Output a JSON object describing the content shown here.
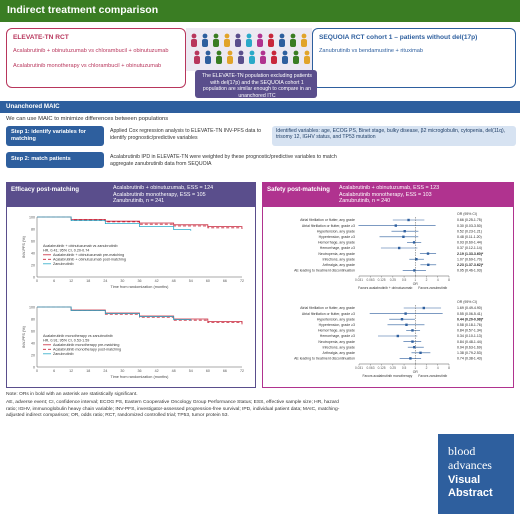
{
  "header": {
    "title": "Indirect treatment comparison"
  },
  "trials": {
    "left": {
      "title": "ELEVATE-TN RCT",
      "lines": [
        "Acalabrutinib + obinutuzumab vs chlorambucil + obinutuzumab",
        "Acalabrutinib monotherapy vs chlorambucil + obinutuzumab"
      ]
    },
    "right": {
      "title": "SEQUOIA RCT cohort 1 – patients without del(17p)",
      "lines": [
        "Zanubrutinib vs bendamustine + rituximab"
      ]
    },
    "callout": "The ELEVATE-TN population excluding patients with del(17p) and the SEQUOIA cohort 1 population are similar enough to compare in an unanchored ITC"
  },
  "maic": {
    "band_title": "Unanchored MAIC",
    "intro": "We can use MAIC to minimize differences between populations",
    "step1": {
      "label": "Step 1: identify variables for matching",
      "desc": "Applied Cox regression analysis to ELEVATE-TN INV-PFS data to identify prognostic/predictive variables",
      "identified": "Identified variables: age, ECOG PS, Binet stage, bulky disease, β2 microglobulin, cytopenia, del(11q), trisomy 12, IGHV status, and TP53 mutation"
    },
    "step2": {
      "label": "Step 2: match patients",
      "desc": "Acalabrutinib IPD in ELEVATE-TN were weighted by these prognostic/predictive variables to match aggregate zanubrutinib data from SEQUOIA"
    }
  },
  "efficacy": {
    "title": "Efficacy post-matching",
    "legend": [
      "Acalabrutinib + obinutuzumab, ESS = 124",
      "Acalabrutinib monotherapy, ESS = 105",
      "Zanubrutinib, n = 241"
    ],
    "ylabel": "INV-PFS (%)",
    "xlabel": "Time from randomization (months)",
    "plots": [
      {
        "legend_lines": [
          "Acalabrutinib + obinutuzumab vs zanubrutinib",
          "HR, 0.41; 95% CI, 0.20-0.74",
          "Acalabrutinib + obinutuzumab pre-matching",
          "Acalabrutinib + obinutuzumab post-matching",
          "Zanubrutinib"
        ]
      },
      {
        "legend_lines": [
          "Acalabrutinib monotherapy vs zanubrutinib",
          "HR, 0.91; 95% CI, 0.53-1.59",
          "Acalabrutinib monotherapy pre-matching",
          "Acalabrutinib monotherapy post-matching",
          "Zanubrutinib"
        ]
      }
    ]
  },
  "safety": {
    "title": "Safety post-matching",
    "legend": [
      "Acalabrutinib + obinutuzumab, ESS = 123",
      "Acalabrutinib monotherapy, ESS = 103",
      "Zanubrutinib, n = 240"
    ],
    "col_header": "OR (95% CI)",
    "axis_label": "OR",
    "favors_left_1": "Favors acalabrutinib + obinutuzumab",
    "favors_left_2": "Favors acalabrutinib monotherapy",
    "favors_right": "Favors zanubrutinib",
    "top_rows": [
      {
        "label": "Atrial fibrillation or flutter, any grade",
        "or": "0.66 (0.25-1.75)"
      },
      {
        "label": "Atrial fibrillation or flutter, grade ≥3",
        "or": "0.30 (0.03-3.50)"
      },
      {
        "label": "Hypertension, any grade",
        "or": "0.52 (0.23-1.21)"
      },
      {
        "label": "Hypertension, grade ≥3",
        "or": "0.48 (0.11-1.20)"
      },
      {
        "label": "Hemorrhage, any grade",
        "or": "0.93 (0.60-1.44)"
      },
      {
        "label": "Hemorrhage, grade ≥3",
        "or": "0.37 (0.12-1.14)"
      },
      {
        "label": "Neutropenia, any grade",
        "or": "2.19 (1.33-3.60)*"
      },
      {
        "label": "Infections, any grade",
        "or": "1.07 (0.69-1.70)"
      },
      {
        "label": "Arthralgia, any grade",
        "or": "2.23 (1.37-3.62)*"
      },
      {
        "label": "AE leading to treatment discontinuation",
        "or": "0.95 (0.46-1.93)"
      }
    ],
    "bottom_rows": [
      {
        "label": "Atrial fibrillation or flutter, any grade",
        "or": "1.69 (0.49-4.90)"
      },
      {
        "label": "Atrial fibrillation or flutter, grade ≥3",
        "or": "0.55 (0.06-5.41)"
      },
      {
        "label": "Hypertension, any grade",
        "or": "0.44 (0.20-0.98)*"
      },
      {
        "label": "Hypertension, grade ≥3",
        "or": "0.58 (0.18-1.76)"
      },
      {
        "label": "Hemorrhage, any grade",
        "or": "0.84 (0.57-1.34)"
      },
      {
        "label": "Hemorrhage, grade ≥3",
        "or": "0.34 (0.10-1.13)"
      },
      {
        "label": "Neutropenia, any grade",
        "or": "0.84 (0.48-1.44)"
      },
      {
        "label": "Infections, any grade",
        "or": "0.94 (0.63-1.69)"
      },
      {
        "label": "Arthralgia, any grade",
        "or": "1.38 (0.79-2.53)"
      },
      {
        "label": "AE leading to treatment discontinuation",
        "or": "0.74 (0.38-1.43)"
      }
    ],
    "ticks": [
      "0.031",
      "0.063",
      "0.125",
      "0.25",
      "0.5",
      "1",
      "2",
      "4",
      "8"
    ]
  },
  "footnote": {
    "line1": "Note: ORs in bold with an asterisk are statistically significant.",
    "line2": "AE, adverse event; CI, confidence interval; ECOG PS, Eastern Cooperative Oncology Group Performance Status; ESS, effective sample size; HR, hazard ratio; IGHV, immunoglobulin heavy chain variable; INV-PFS, investigator-assessed progression-free survival; IPD, individual patient data; MAIC, matching-adjusted indirect comparison; OR, odds ratio; RCT, randomized controlled trial; TP53, tumor protein 53."
  },
  "logo": {
    "line1": "blood",
    "line2": "advances",
    "line3": "Visual",
    "line4": "Abstract"
  },
  "colors": {
    "green": "#3a7d23",
    "blue": "#2e5f9e",
    "purple": "#5a4e8c",
    "magenta": "#b0338f",
    "red": "#c8273b",
    "teal": "#2aa9c8"
  },
  "chart_data": [
    {
      "type": "line",
      "ylabel": "INV-PFS (%)",
      "xlabel": "Time from randomization (months)",
      "xticks": [
        0,
        6,
        12,
        18,
        24,
        30,
        36,
        42,
        48,
        54,
        60,
        66,
        72
      ],
      "yticks": [
        0,
        20,
        40,
        60,
        80,
        100
      ],
      "series": [
        {
          "name": "Acalabrutinib + obinutuzumab pre-matching",
          "x": [
            0,
            12,
            24,
            36,
            48,
            60,
            72
          ],
          "y": [
            100,
            96,
            93,
            90,
            87,
            84,
            83
          ]
        },
        {
          "name": "Acalabrutinib + obinutuzumab post-matching",
          "x": [
            0,
            12,
            24,
            36,
            48,
            60,
            72
          ],
          "y": [
            100,
            95,
            92,
            88,
            85,
            82,
            80
          ]
        },
        {
          "name": "Zanubrutinib",
          "x": [
            0,
            12,
            24,
            36,
            48,
            54
          ],
          "y": [
            100,
            94,
            89,
            84,
            79,
            77
          ]
        }
      ]
    },
    {
      "type": "line",
      "ylabel": "INV-PFS (%)",
      "xlabel": "Time from randomization (months)",
      "xticks": [
        0,
        6,
        12,
        18,
        24,
        30,
        36,
        42,
        48,
        54,
        60,
        66,
        72
      ],
      "yticks": [
        0,
        20,
        40,
        60,
        80,
        100
      ],
      "series": [
        {
          "name": "Acalabrutinib monotherapy pre-matching",
          "x": [
            0,
            12,
            24,
            36,
            48,
            60,
            72
          ],
          "y": [
            100,
            95,
            90,
            85,
            80,
            76,
            73
          ]
        },
        {
          "name": "Acalabrutinib monotherapy post-matching",
          "x": [
            0,
            12,
            24,
            36,
            48,
            60,
            72
          ],
          "y": [
            100,
            94,
            88,
            83,
            78,
            74,
            71
          ]
        },
        {
          "name": "Zanubrutinib",
          "x": [
            0,
            12,
            24,
            36,
            48,
            54
          ],
          "y": [
            100,
            94,
            89,
            84,
            79,
            77
          ]
        }
      ]
    },
    {
      "type": "scatter",
      "xscale": "log",
      "xlim": [
        0.031,
        8
      ],
      "points": [
        {
          "or": 0.66,
          "lo": 0.25,
          "hi": 1.75
        },
        {
          "or": 0.3,
          "lo": 0.03,
          "hi": 3.5
        },
        {
          "or": 0.52,
          "lo": 0.23,
          "hi": 1.21
        },
        {
          "or": 0.48,
          "lo": 0.11,
          "hi": 1.2
        },
        {
          "or": 0.93,
          "lo": 0.6,
          "hi": 1.44
        },
        {
          "or": 0.37,
          "lo": 0.12,
          "hi": 1.14
        },
        {
          "or": 2.19,
          "lo": 1.33,
          "hi": 3.6
        },
        {
          "or": 1.07,
          "lo": 0.69,
          "hi": 1.7
        },
        {
          "or": 2.23,
          "lo": 1.37,
          "hi": 3.62
        },
        {
          "or": 0.95,
          "lo": 0.46,
          "hi": 1.93
        }
      ]
    },
    {
      "type": "scatter",
      "xscale": "log",
      "xlim": [
        0.031,
        8
      ],
      "points": [
        {
          "or": 1.69,
          "lo": 0.49,
          "hi": 4.9
        },
        {
          "or": 0.55,
          "lo": 0.06,
          "hi": 5.41
        },
        {
          "or": 0.44,
          "lo": 0.2,
          "hi": 0.98
        },
        {
          "or": 0.58,
          "lo": 0.18,
          "hi": 1.76
        },
        {
          "or": 0.84,
          "lo": 0.57,
          "hi": 1.34
        },
        {
          "or": 0.34,
          "lo": 0.1,
          "hi": 1.13
        },
        {
          "or": 0.84,
          "lo": 0.48,
          "hi": 1.44
        },
        {
          "or": 0.94,
          "lo": 0.63,
          "hi": 1.69
        },
        {
          "or": 1.38,
          "lo": 0.79,
          "hi": 2.53
        },
        {
          "or": 0.74,
          "lo": 0.38,
          "hi": 1.43
        }
      ]
    }
  ]
}
